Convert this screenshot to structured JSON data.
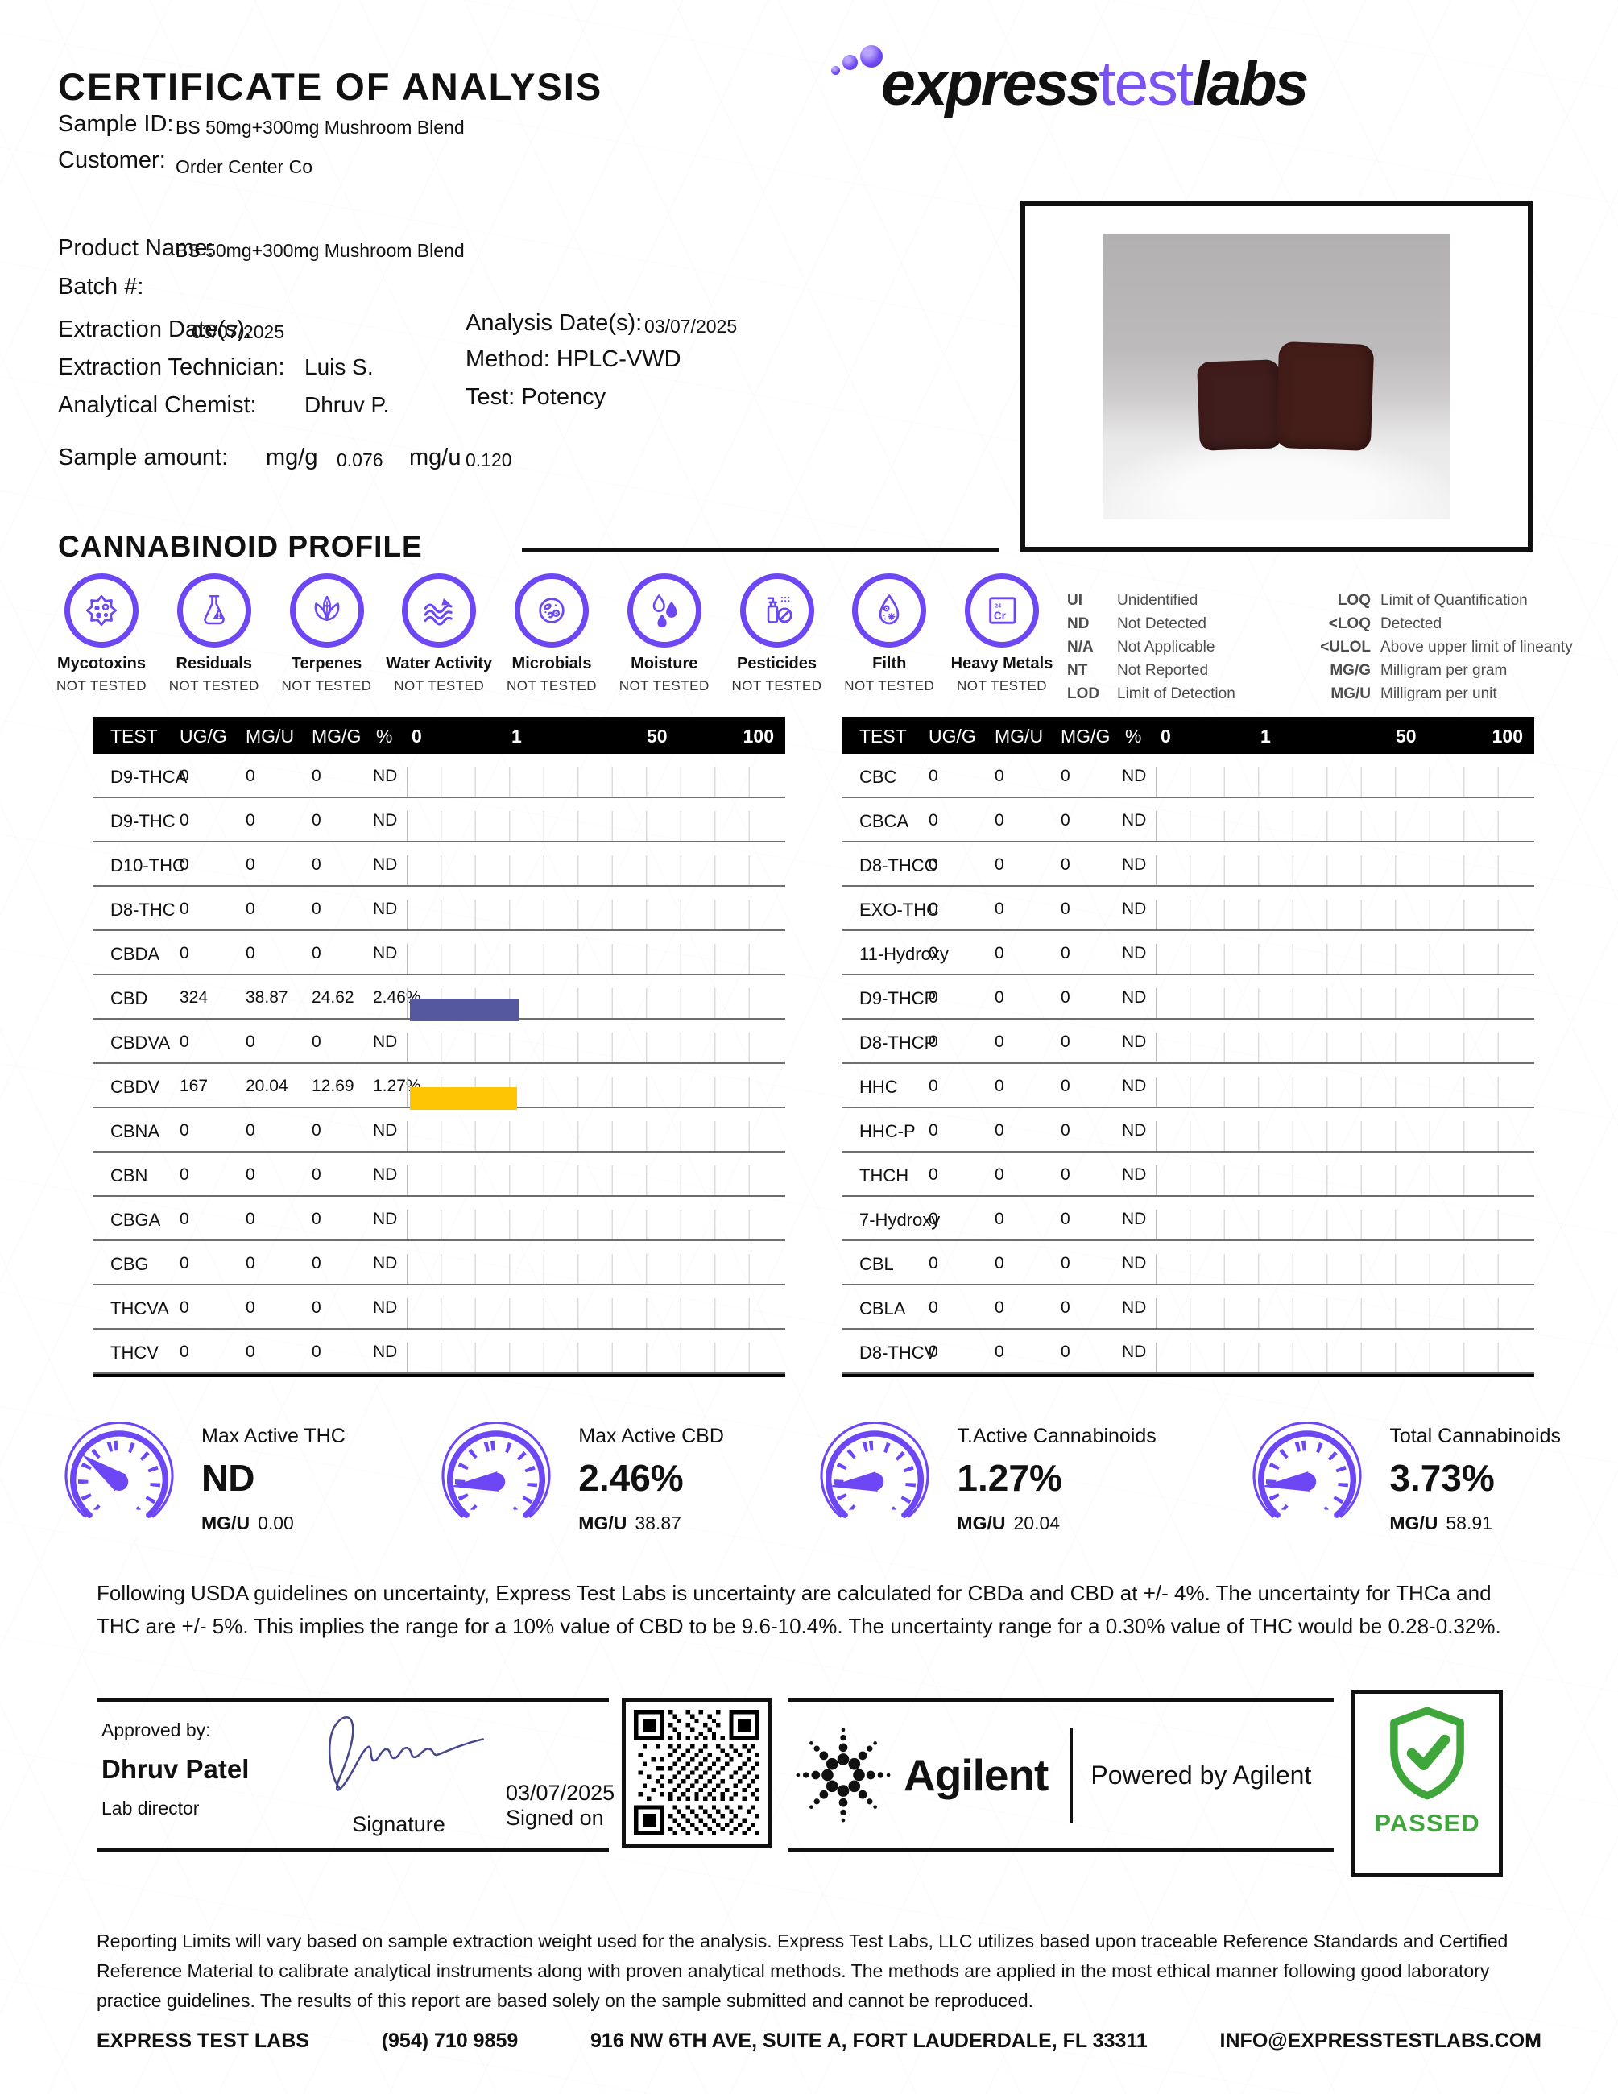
{
  "colors": {
    "accent": "#6d47f3",
    "bar_cbd": "#55589e",
    "bar_cbdv": "#fdc504",
    "passed_green": "#3fa63c",
    "signature_ink": "#46468e"
  },
  "header": {
    "title": "CERTIFICATE OF ANALYSIS",
    "logo_express": "express",
    "logo_test": "test",
    "logo_labs": "labs"
  },
  "info": {
    "sample_id_label": "Sample ID:",
    "sample_id_value": "BS 50mg+300mg Mushroom Blend",
    "customer_label": "Customer:",
    "customer_value": "Order Center Co",
    "product_name_label": "Product Name:",
    "product_name_value": "BS 50mg+300mg Mushroom Blend",
    "batch_label": "Batch #:",
    "extraction_date_label": "Extraction Date(s):",
    "extraction_date_value": "03/07/2025",
    "analysis_date_label": "Analysis Date(s):",
    "analysis_date_value": "03/07/2025",
    "extraction_tech_label": "Extraction Technician:",
    "extraction_tech_value": "Luis S.",
    "method_label": "Method:",
    "method_value": "HPLC-VWD",
    "chemist_label": "Analytical Chemist:",
    "chemist_value": "Dhruv P.",
    "test_label": "Test:",
    "test_value": "Potency",
    "sample_amount_label": "Sample amount:",
    "mgg_label": "mg/g",
    "mgg_value": "0.076",
    "mgu_label": "mg/u",
    "mgu_value": "0.120"
  },
  "section_heading": "CANNABINOID PROFILE",
  "panels": [
    {
      "label": "Mycotoxins",
      "status": "NOT TESTED"
    },
    {
      "label": "Residuals",
      "status": "NOT TESTED"
    },
    {
      "label": "Terpenes",
      "status": "NOT TESTED"
    },
    {
      "label": "Water Activity",
      "status": "NOT TESTED"
    },
    {
      "label": "Microbials",
      "status": "NOT TESTED"
    },
    {
      "label": "Moisture",
      "status": "NOT TESTED"
    },
    {
      "label": "Pesticides",
      "status": "NOT TESTED"
    },
    {
      "label": "Filth",
      "status": "NOT TESTED"
    },
    {
      "label": "Heavy Metals",
      "status": "NOT TESTED"
    }
  ],
  "legend": {
    "col1": [
      {
        "abbr": "UI",
        "text": "Unidentified"
      },
      {
        "abbr": "ND",
        "text": "Not Detected"
      },
      {
        "abbr": "N/A",
        "text": "Not Applicable"
      },
      {
        "abbr": "NT",
        "text": "Not Reported"
      },
      {
        "abbr": "LOD",
        "text": "Limit of Detection"
      }
    ],
    "col2": [
      {
        "abbr": "LOQ",
        "text": "Limit of Quantification"
      },
      {
        "abbr": "<LOQ",
        "text": "Detected"
      },
      {
        "abbr": "<ULOL",
        "text": "Above upper limit of lineanty"
      },
      {
        "abbr": "MG/G",
        "text": "Milligram per gram"
      },
      {
        "abbr": "MG/U",
        "text": "Milligram per unit"
      }
    ]
  },
  "tables": {
    "columns": {
      "test": "TEST",
      "ugg": "UG/G",
      "mgu": "MG/U",
      "mgg": "MG/G",
      "pct": "%"
    },
    "ticks": {
      "t0": "0",
      "t1": "1",
      "t50": "50",
      "t100": "100"
    },
    "left": {
      "rows": [
        {
          "test": "D9-THCA",
          "ugg": "0",
          "mgu": "0",
          "mgg": "0",
          "pct": "ND"
        },
        {
          "test": "D9-THC",
          "ugg": "0",
          "mgu": "0",
          "mgg": "0",
          "pct": "ND"
        },
        {
          "test": "D10-THC",
          "ugg": "0",
          "mgu": "0",
          "mgg": "0",
          "pct": "ND"
        },
        {
          "test": "D8-THC",
          "ugg": "0",
          "mgu": "0",
          "mgg": "0",
          "pct": "ND"
        },
        {
          "test": "CBDA",
          "ugg": "0",
          "mgu": "0",
          "mgg": "0",
          "pct": "ND"
        },
        {
          "test": "CBD",
          "ugg": "324",
          "mgu": "38.87",
          "mgg": "24.62",
          "pct": "2.46%",
          "bar_pct": 29,
          "bar_color": "#55589e"
        },
        {
          "test": "CBDVA",
          "ugg": "0",
          "mgu": "0",
          "mgg": "0",
          "pct": "ND"
        },
        {
          "test": "CBDV",
          "ugg": "167",
          "mgu": "20.04",
          "mgg": "12.69",
          "pct": "1.27%",
          "bar_pct": 28.5,
          "bar_color": "#fdc504"
        },
        {
          "test": "CBNA",
          "ugg": "0",
          "mgu": "0",
          "mgg": "0",
          "pct": "ND"
        },
        {
          "test": "CBN",
          "ugg": "0",
          "mgu": "0",
          "mgg": "0",
          "pct": "ND"
        },
        {
          "test": "CBGA",
          "ugg": "0",
          "mgu": "0",
          "mgg": "0",
          "pct": "ND"
        },
        {
          "test": "CBG",
          "ugg": "0",
          "mgu": "0",
          "mgg": "0",
          "pct": "ND"
        },
        {
          "test": "THCVA",
          "ugg": "0",
          "mgu": "0",
          "mgg": "0",
          "pct": "ND"
        },
        {
          "test": "THCV",
          "ugg": "0",
          "mgu": "0",
          "mgg": "0",
          "pct": "ND"
        }
      ]
    },
    "right": {
      "rows": [
        {
          "test": "CBC",
          "ugg": "0",
          "mgu": "0",
          "mgg": "0",
          "pct": "ND"
        },
        {
          "test": "CBCA",
          "ugg": "0",
          "mgu": "0",
          "mgg": "0",
          "pct": "ND"
        },
        {
          "test": "D8-THCO",
          "ugg": "0",
          "mgu": "0",
          "mgg": "0",
          "pct": "ND"
        },
        {
          "test": "EXO-THC",
          "ugg": "0",
          "mgu": "0",
          "mgg": "0",
          "pct": "ND"
        },
        {
          "test": "11-Hydroxy",
          "ugg": "0",
          "mgu": "0",
          "mgg": "0",
          "pct": "ND"
        },
        {
          "test": "D9-THCP",
          "ugg": "0",
          "mgu": "0",
          "mgg": "0",
          "pct": "ND"
        },
        {
          "test": "D8-THCP",
          "ugg": "0",
          "mgu": "0",
          "mgg": "0",
          "pct": "ND"
        },
        {
          "test": "HHC",
          "ugg": "0",
          "mgu": "0",
          "mgg": "0",
          "pct": "ND"
        },
        {
          "test": "HHC-P",
          "ugg": "0",
          "mgu": "0",
          "mgg": "0",
          "pct": "ND"
        },
        {
          "test": "THCH",
          "ugg": "0",
          "mgu": "0",
          "mgg": "0",
          "pct": "ND"
        },
        {
          "test": "7-Hydroxy",
          "ugg": "0",
          "mgu": "0",
          "mgg": "0",
          "pct": "ND"
        },
        {
          "test": "CBL",
          "ugg": "0",
          "mgu": "0",
          "mgg": "0",
          "pct": "ND"
        },
        {
          "test": "CBLA",
          "ugg": "0",
          "mgu": "0",
          "mgg": "0",
          "pct": "ND"
        },
        {
          "test": "D8-THCV",
          "ugg": "0",
          "mgu": "0",
          "mgg": "0",
          "pct": "ND"
        }
      ]
    }
  },
  "gauges": [
    {
      "title": "Max Active THC",
      "value": "ND",
      "unit_label": "MG/U",
      "unit_value": "0.00"
    },
    {
      "title": "Max Active CBD",
      "value": "2.46%",
      "unit_label": "MG/U",
      "unit_value": "38.87"
    },
    {
      "title": "T.Active Cannabinoids",
      "value": "1.27%",
      "unit_label": "MG/U",
      "unit_value": "20.04"
    },
    {
      "title": "Total Cannabinoids",
      "value": "3.73%",
      "unit_label": "MG/U",
      "unit_value": "58.91"
    }
  ],
  "uncertainty_note": "Following USDA guidelines on uncertainty, Express Test Labs is uncertainty are calculated for CBDa and CBD at +/- 4%. The uncertainty for THCa and THC are +/- 5%. This implies the range for a 10% value of CBD to be 9.6-10.4%. The uncertainty range for a 0.30% value of THC would be 0.28-0.32%.",
  "approval": {
    "approved_by_label": "Approved by:",
    "name": "Dhruv Patel",
    "role": "Lab director",
    "signature_label": "Signature",
    "date": "03/07/2025",
    "signed_on_label": "Signed on"
  },
  "agilent": {
    "brand": "Agilent",
    "tagline": "Powered by Agilent"
  },
  "passed": {
    "label": "PASSED"
  },
  "disclaimer": "Reporting Limits will vary based on sample extraction weight used for the analysis. Express Test Labs, LLC utilizes based upon traceable Reference Standards and Certified Reference Material to calibrate analytical instruments along with proven analytical methods. The methods are applied in the most ethical manner following good laboratory practice guidelines. The results of this report are based solely on the sample submitted and cannot be reproduced.",
  "footer": {
    "company": "EXPRESS TEST LABS",
    "phone": "(954) 710 9859",
    "address": "916 NW 6TH AVE, SUITE A, FORT LAUDERDALE, FL 33311",
    "email": "INFO@EXPRESSTESTLABS.COM"
  }
}
